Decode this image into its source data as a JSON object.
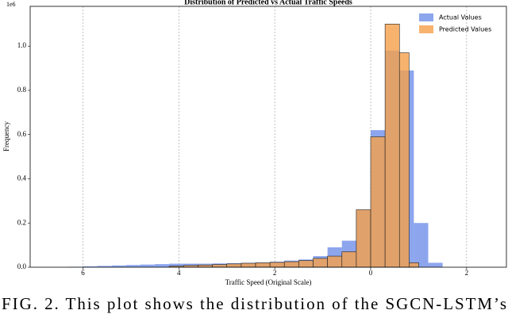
{
  "chart_data": {
    "type": "histogram",
    "title": "Distribution of Predicted vs Actual Traffic Speeds",
    "xlabel": "Traffic Speed (Original Scale)",
    "ylabel": "Frequency",
    "y_offset_label": "1e6",
    "xlim": [
      -7.1,
      2.83
    ],
    "ylim": [
      0,
      1.18
    ],
    "xticks": [
      {
        "value": -6,
        "label": "6"
      },
      {
        "value": -4,
        "label": "4"
      },
      {
        "value": -2,
        "label": "2"
      },
      0,
      {
        "value": 2,
        "label": "2"
      }
    ],
    "yticks": [
      {
        "value": 0,
        "label": "0.0"
      },
      {
        "value": 0.2,
        "label": "0.2"
      },
      {
        "value": 0.4,
        "label": "0.4"
      },
      {
        "value": 0.6,
        "label": "0.6"
      },
      {
        "value": 0.8,
        "label": "0.8"
      },
      {
        "value": 1.0,
        "label": "1.0"
      }
    ],
    "grid": "x",
    "legend": "upper right",
    "series": [
      {
        "name": "Actual Values",
        "color": "#6f8fe8",
        "bins": [
          -6.3,
          -6.0,
          -5.7,
          -5.4,
          -5.1,
          -4.8,
          -4.5,
          -4.2,
          -3.9,
          -3.6,
          -3.3,
          -3.0,
          -2.7,
          -2.4,
          -2.1,
          -1.8,
          -1.5,
          -1.2,
          -0.9,
          -0.6,
          -0.3,
          0,
          0.3,
          0.6,
          0.9,
          1.2,
          1.5
        ],
        "values": [
          0.002,
          0.004,
          0.006,
          0.008,
          0.01,
          0.012,
          0.014,
          0.016,
          0.016,
          0.016,
          0.017,
          0.018,
          0.02,
          0.022,
          0.025,
          0.03,
          0.035,
          0.05,
          0.09,
          0.12,
          0.26,
          0.62,
          0.98,
          0.89,
          0.2,
          0.02
        ]
      },
      {
        "name": "Predicted Values",
        "color": "#f5a04a",
        "bins": [
          -4.2,
          -3.9,
          -3.6,
          -3.3,
          -3.0,
          -2.7,
          -2.4,
          -2.1,
          -1.8,
          -1.5,
          -1.2,
          -0.9,
          -0.6,
          -0.3,
          0,
          0.3,
          0.6,
          0.8,
          1.0
        ],
        "values": [
          0.005,
          0.008,
          0.01,
          0.012,
          0.015,
          0.018,
          0.02,
          0.022,
          0.025,
          0.03,
          0.04,
          0.05,
          0.07,
          0.26,
          0.59,
          1.1,
          0.97,
          0.02
        ]
      }
    ]
  },
  "caption": "FIG. 2. This plot shows the distribution of the SGCN-LSTM’s"
}
